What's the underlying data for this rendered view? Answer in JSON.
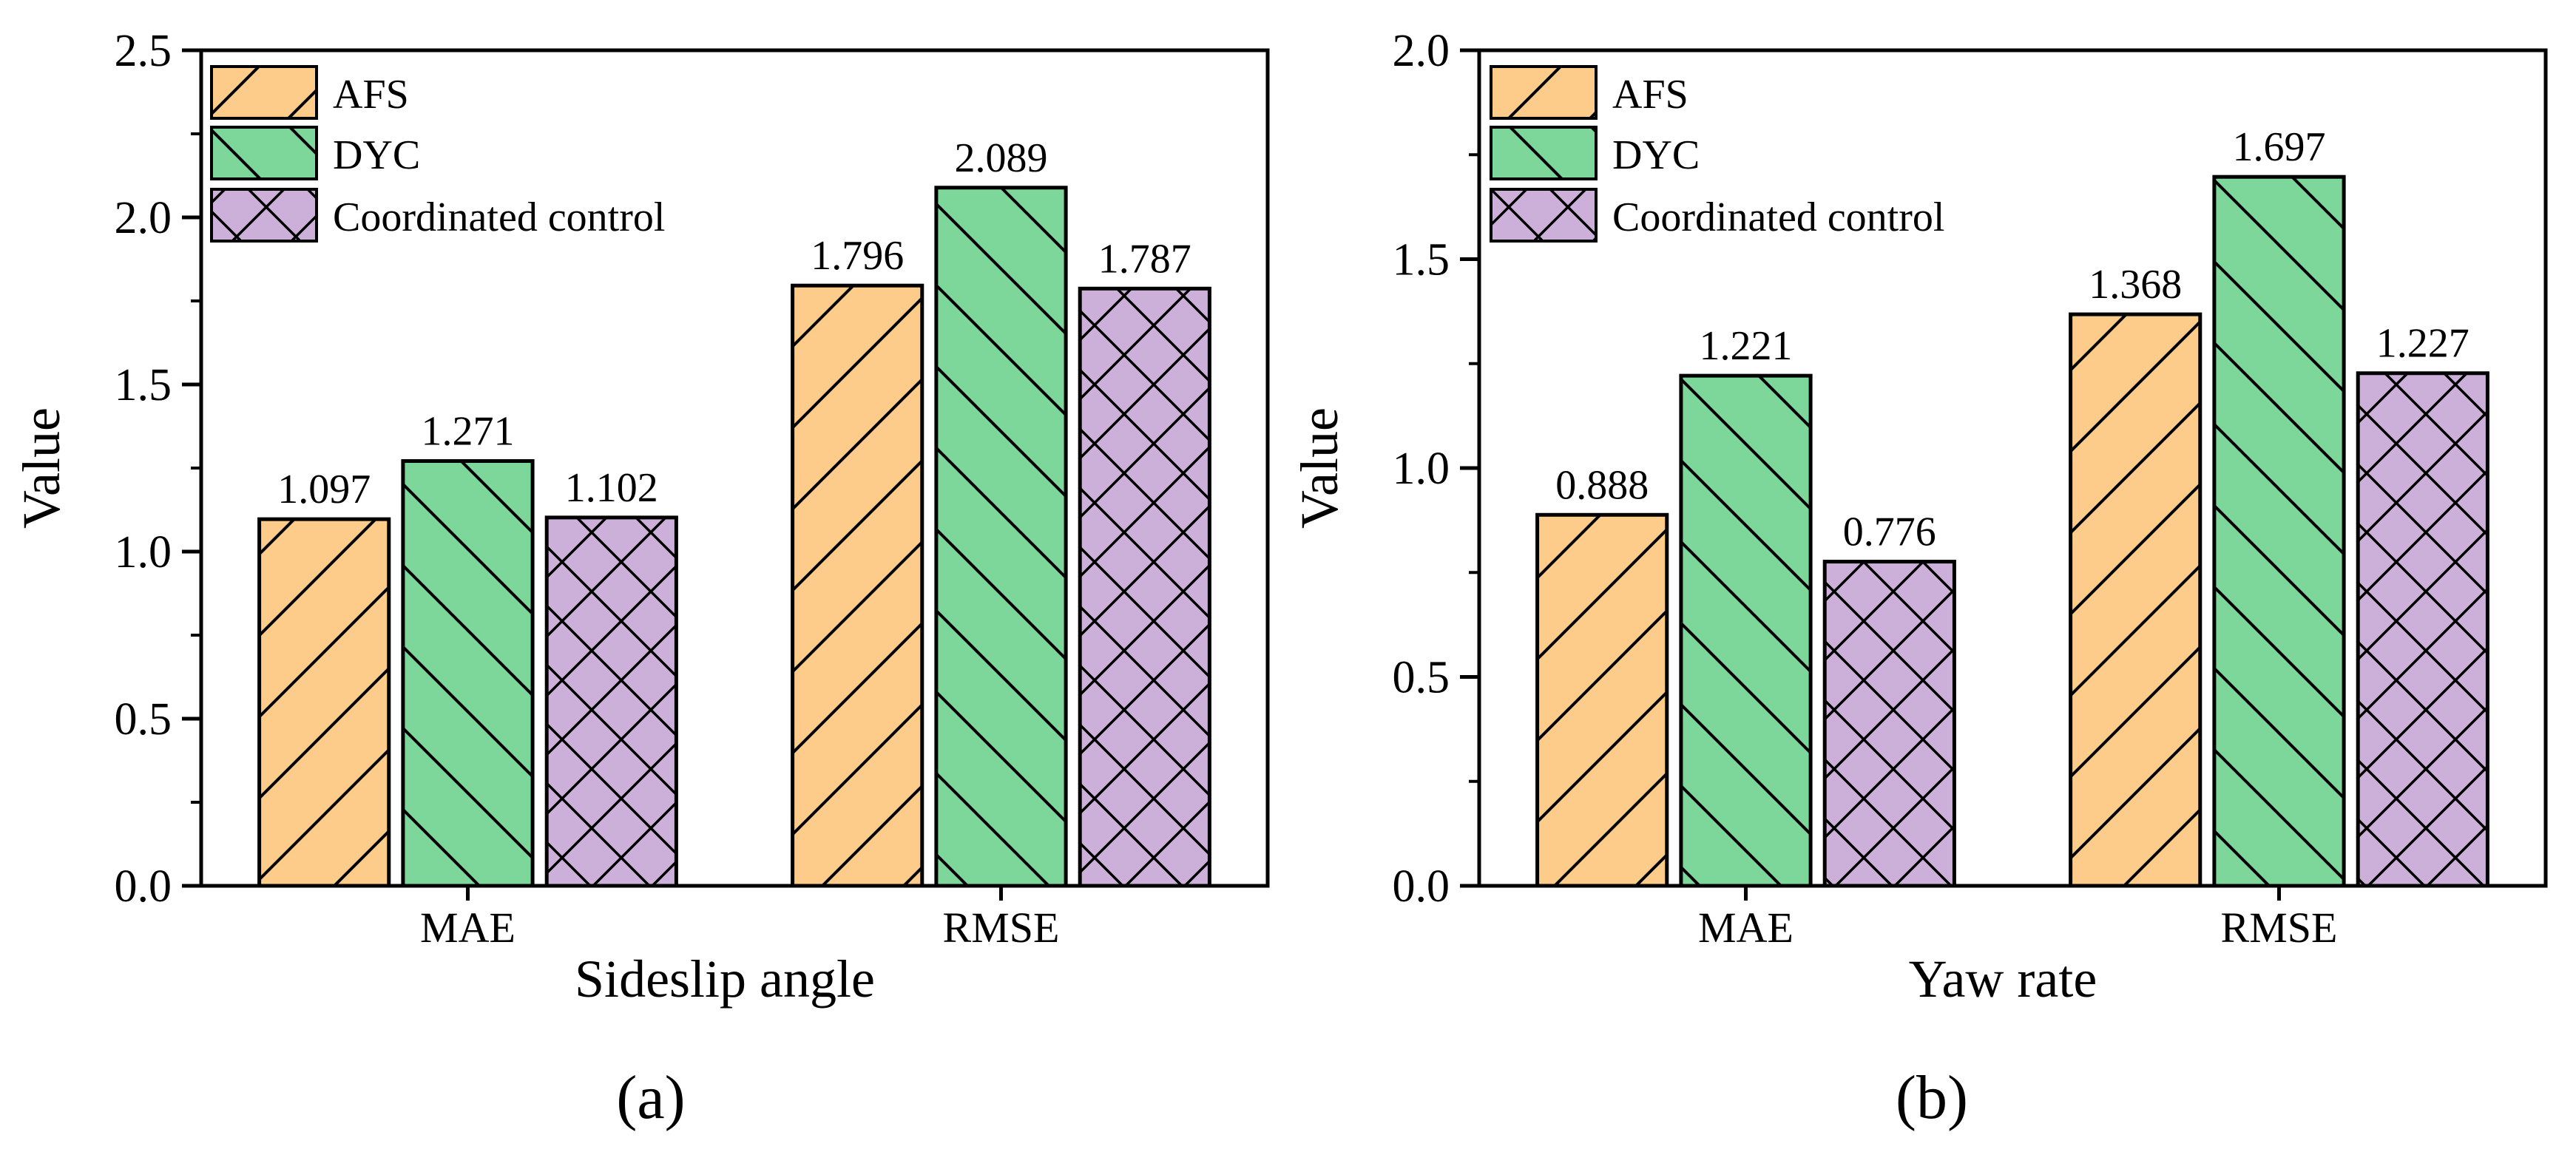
{
  "colors": {
    "afs": "#FDCB8A",
    "dyc": "#7DD79A",
    "coord": "#CDB0DA",
    "stroke": "#000000"
  },
  "legend": [
    "AFS",
    "DYC",
    "Coordinated control"
  ],
  "ylabel": "Value",
  "chart_data": [
    {
      "type": "bar",
      "panel": "(a)",
      "xlabel": "Sideslip angle",
      "ylabel": "Value",
      "categories": [
        "MAE",
        "RMSE"
      ],
      "series": [
        {
          "name": "AFS",
          "values": [
            1.097,
            1.796
          ],
          "labels": [
            "1.097",
            "1.796"
          ]
        },
        {
          "name": "DYC",
          "values": [
            1.271,
            2.089
          ],
          "labels": [
            "1.271",
            "2.089"
          ]
        },
        {
          "name": "Coordinated control",
          "values": [
            1.102,
            1.787
          ],
          "labels": [
            "1.102",
            "1.787"
          ]
        }
      ],
      "ylim": [
        0,
        2.5
      ],
      "yticks": [
        0.0,
        0.5,
        1.0,
        1.5,
        2.0,
        2.5
      ],
      "ytick_labels": [
        "0.0",
        "0.5",
        "1.0",
        "1.5",
        "2.0",
        "2.5"
      ],
      "legend_position": "top-left"
    },
    {
      "type": "bar",
      "panel": "(b)",
      "xlabel": "Yaw rate",
      "ylabel": "Value",
      "categories": [
        "MAE",
        "RMSE"
      ],
      "series": [
        {
          "name": "AFS",
          "values": [
            0.888,
            1.368
          ],
          "labels": [
            "0.888",
            "1.368"
          ]
        },
        {
          "name": "DYC",
          "values": [
            1.221,
            1.697
          ],
          "labels": [
            "1.221",
            "1.697"
          ]
        },
        {
          "name": "Coordinated control",
          "values": [
            0.776,
            1.227
          ],
          "labels": [
            "0.776",
            "1.227"
          ]
        }
      ],
      "ylim": [
        0,
        2.0
      ],
      "yticks": [
        0.0,
        0.5,
        1.0,
        1.5,
        2.0
      ],
      "ytick_labels": [
        "0.0",
        "0.5",
        "1.0",
        "1.5",
        "2.0"
      ],
      "legend_position": "top-left"
    }
  ]
}
